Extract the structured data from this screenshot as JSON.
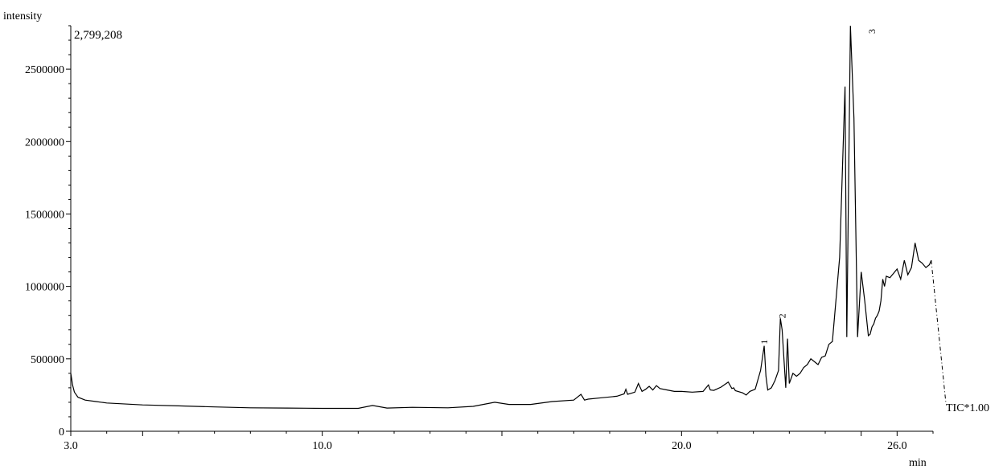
{
  "chart_data": {
    "type": "line",
    "title": "",
    "ylabel": "intensity",
    "xlabel": "min",
    "max_label": "2,799,208",
    "trace_label": "TIC*1.00",
    "xlim": [
      3.0,
      27.0
    ],
    "ylim": [
      0,
      2800000
    ],
    "xticks": [
      3.0,
      10.0,
      20.0,
      26.0
    ],
    "xtick_labels": [
      "3.0",
      "10.0",
      "20.0",
      "26.0"
    ],
    "yticks": [
      0,
      500000,
      1000000,
      1500000,
      2000000,
      2500000
    ],
    "ytick_labels": [
      "0",
      "500000",
      "1000000",
      "1500000",
      "2000000",
      "2500000"
    ],
    "peak_labels": [
      {
        "label": "1",
        "x": 22.3,
        "y": 600000
      },
      {
        "label": "2",
        "x": 22.8,
        "y": 780000
      },
      {
        "label": "3",
        "x": 25.3,
        "y": 2799208
      }
    ],
    "series": [
      {
        "x": [
          3.0,
          3.05,
          3.1,
          3.2,
          3.4,
          3.7,
          4.0,
          5.0,
          6.0,
          7.0,
          8.0,
          9.0,
          10.0,
          11.0,
          11.4,
          11.8,
          12.5,
          13.5,
          14.2,
          14.8,
          15.2,
          15.8,
          16.4,
          17.0,
          17.2,
          17.3,
          17.4,
          17.8,
          18.2,
          18.4,
          18.45,
          18.5,
          18.6,
          18.7,
          18.8,
          18.9,
          19.0,
          19.1,
          19.2,
          19.3,
          19.4,
          19.6,
          19.8,
          20.0,
          20.3,
          20.6,
          20.75,
          20.8,
          20.9,
          21.1,
          21.3,
          21.4,
          21.45,
          21.5,
          21.7,
          21.8,
          21.9,
          22.05,
          22.2,
          22.3,
          22.35,
          22.4,
          22.5,
          22.6,
          22.7,
          22.75,
          22.8,
          22.9,
          22.95,
          23.0,
          23.1,
          23.2,
          23.3,
          23.4,
          23.5,
          23.6,
          23.8,
          23.9,
          24.0,
          24.1,
          24.2,
          24.4,
          24.55,
          24.6,
          24.7,
          24.8,
          24.9,
          25.0,
          25.1,
          25.2,
          25.25,
          25.3,
          25.35,
          25.4,
          25.45,
          25.5,
          25.55,
          25.6,
          25.65,
          25.7,
          25.8,
          25.9,
          26.0,
          26.1,
          26.2,
          26.3,
          26.4,
          26.5,
          26.6,
          26.7,
          26.8,
          26.9,
          26.95
        ],
        "y": [
          400000,
          320000,
          270000,
          235000,
          215000,
          205000,
          195000,
          182000,
          175000,
          168000,
          162000,
          160000,
          158000,
          158000,
          178000,
          160000,
          165000,
          162000,
          172000,
          200000,
          185000,
          185000,
          205000,
          215000,
          255000,
          215000,
          222000,
          232000,
          242000,
          258000,
          290000,
          255000,
          262000,
          270000,
          330000,
          275000,
          290000,
          310000,
          285000,
          315000,
          295000,
          285000,
          275000,
          275000,
          270000,
          275000,
          320000,
          285000,
          282000,
          305000,
          340000,
          295000,
          300000,
          280000,
          265000,
          250000,
          275000,
          290000,
          420000,
          590000,
          380000,
          285000,
          300000,
          350000,
          420000,
          780000,
          700000,
          300000,
          640000,
          330000,
          400000,
          380000,
          400000,
          440000,
          460000,
          500000,
          460000,
          510000,
          520000,
          600000,
          620000,
          1200000,
          2380000,
          650000,
          2799208,
          2160000,
          650000,
          1100000,
          900000,
          660000,
          670000,
          720000,
          740000,
          780000,
          800000,
          830000,
          900000,
          1050000,
          1000000,
          1070000,
          1060000,
          1090000,
          1120000,
          1050000,
          1180000,
          1080000,
          1130000,
          1300000,
          1180000,
          1160000,
          1130000,
          1150000,
          1180000
        ]
      }
    ]
  }
}
